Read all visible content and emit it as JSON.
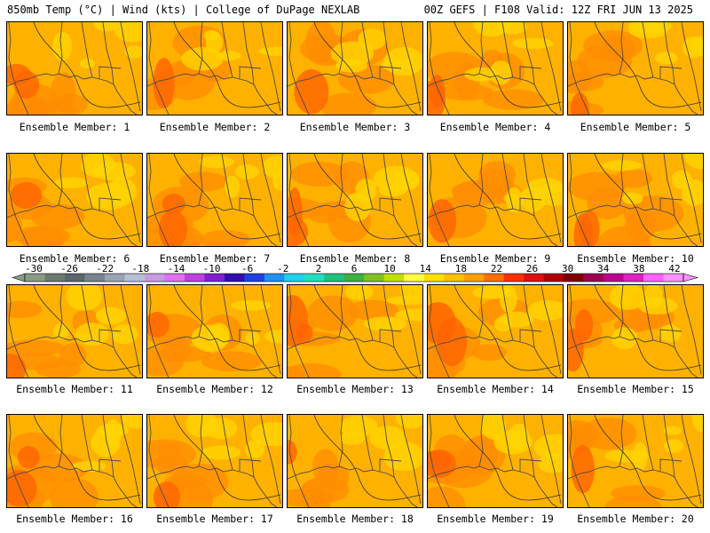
{
  "header": {
    "left": "850mb Temp (°C) | Wind (kts) | College of DuPage NEXLAB",
    "right": "00Z GEFS | F108 Valid: 12Z FRI JUN 13 2025"
  },
  "members": [
    {
      "label": "Ensemble Member: 1"
    },
    {
      "label": "Ensemble Member: 2"
    },
    {
      "label": "Ensemble Member: 3"
    },
    {
      "label": "Ensemble Member: 4"
    },
    {
      "label": "Ensemble Member: 5"
    },
    {
      "label": "Ensemble Member: 6"
    },
    {
      "label": "Ensemble Member: 7"
    },
    {
      "label": "Ensemble Member: 8"
    },
    {
      "label": "Ensemble Member: 9"
    },
    {
      "label": "Ensemble Member: 10"
    },
    {
      "label": "Ensemble Member: 11"
    },
    {
      "label": "Ensemble Member: 12"
    },
    {
      "label": "Ensemble Member: 13"
    },
    {
      "label": "Ensemble Member: 14"
    },
    {
      "label": "Ensemble Member: 15"
    },
    {
      "label": "Ensemble Member: 16"
    },
    {
      "label": "Ensemble Member: 17"
    },
    {
      "label": "Ensemble Member: 18"
    },
    {
      "label": "Ensemble Member: 19"
    },
    {
      "label": "Ensemble Member: 20"
    }
  ],
  "colorbar": {
    "tick_labels": [
      "-30",
      "-26",
      "-22",
      "-18",
      "-14",
      "-10",
      "-6",
      "-2",
      "2",
      "6",
      "10",
      "14",
      "18",
      "22",
      "26",
      "30",
      "34",
      "38",
      "42"
    ],
    "colors": [
      "#8a9a86",
      "#6e7a6e",
      "#5c6470",
      "#7a8290",
      "#9aa2b4",
      "#b8bed6",
      "#c89ce0",
      "#e070f0",
      "#c040e0",
      "#8020d0",
      "#3010b0",
      "#2040e0",
      "#2090f0",
      "#20d0f0",
      "#20e0c0",
      "#20c080",
      "#40b040",
      "#80c020",
      "#c0e000",
      "#ffff40",
      "#ffe000",
      "#ffc000",
      "#ffa000",
      "#ff7000",
      "#ff3000",
      "#e01010",
      "#b00000",
      "#800000",
      "#a00050",
      "#c00090",
      "#e020c0",
      "#ff60ff",
      "#ff90ff"
    ]
  },
  "map": {
    "base_color": "#ffb100",
    "warm_color": "#ff8c00",
    "hot_color": "#ff6400",
    "cool_color": "#ffd400",
    "line_color": "#4a4a4a"
  }
}
